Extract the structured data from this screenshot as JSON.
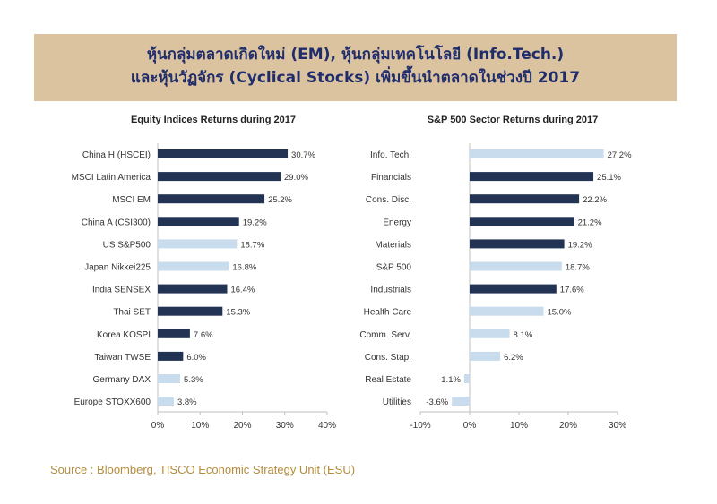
{
  "banner": {
    "line1": "หุ้นกลุ่มตลาดเกิดใหม่ (EM), หุ้นกลุ่มเทคโนโลยี (Info.Tech.)",
    "line2": "และหุ้นวัฏจักร (Cyclical Stocks) เพิ่มขึ้นนำตลาดในช่วงปี 2017"
  },
  "source": "Source : Bloomberg, TISCO Economic Strategy Unit  (ESU)",
  "colors": {
    "dark": "#233353",
    "light": "#c9dcee",
    "axis": "#bfbfbf"
  },
  "chart_data": [
    {
      "type": "bar",
      "orientation": "horizontal",
      "title": "Equity Indices Returns during 2017",
      "categories": [
        "China H (HSCEI)",
        "MSCI Latin America",
        "MSCI EM",
        "China A (CSI300)",
        "US S&P500",
        "Japan Nikkei225",
        "India SENSEX",
        "Thai SET",
        "Korea KOSPI",
        "Taiwan TWSE",
        "Germany DAX",
        "Europe STOXX600"
      ],
      "values": [
        30.7,
        29.0,
        25.2,
        19.2,
        18.7,
        16.8,
        16.4,
        15.3,
        7.6,
        6.0,
        5.3,
        3.8
      ],
      "value_labels": [
        "30.7%",
        "29.0%",
        "25.2%",
        "19.2%",
        "18.7%",
        "16.8%",
        "16.4%",
        "15.3%",
        "7.6%",
        "6.0%",
        "5.3%",
        "3.8%"
      ],
      "shade": [
        "dark",
        "dark",
        "dark",
        "dark",
        "light",
        "light",
        "dark",
        "dark",
        "dark",
        "dark",
        "light",
        "light"
      ],
      "xlim": [
        0,
        40
      ],
      "xticks": [
        0,
        10,
        20,
        30,
        40
      ],
      "xtick_labels": [
        "0%",
        "10%",
        "20%",
        "30%",
        "40%"
      ]
    },
    {
      "type": "bar",
      "orientation": "horizontal",
      "title": "S&P 500 Sector Returns during 2017",
      "categories": [
        "Info. Tech.",
        "Financials",
        "Cons. Disc.",
        "Energy",
        "Materials",
        "S&P 500",
        "Industrials",
        "Health Care",
        "Comm. Serv.",
        "Cons. Stap.",
        "Real Estate",
        "Utilities"
      ],
      "values": [
        27.2,
        25.1,
        22.2,
        21.2,
        19.2,
        18.7,
        17.6,
        15.0,
        8.1,
        6.2,
        -1.1,
        -3.6
      ],
      "value_labels": [
        "27.2%",
        "25.1%",
        "22.2%",
        "21.2%",
        "19.2%",
        "18.7%",
        "17.6%",
        "15.0%",
        "8.1%",
        "6.2%",
        "-1.1%",
        "-3.6%"
      ],
      "shade": [
        "light",
        "dark",
        "dark",
        "dark",
        "dark",
        "light",
        "dark",
        "light",
        "light",
        "light",
        "light",
        "light"
      ],
      "xlim": [
        -10,
        30
      ],
      "xticks": [
        -10,
        0,
        10,
        20,
        30
      ],
      "xtick_labels": [
        "-10%",
        "0%",
        "10%",
        "20%",
        "30%"
      ]
    }
  ]
}
